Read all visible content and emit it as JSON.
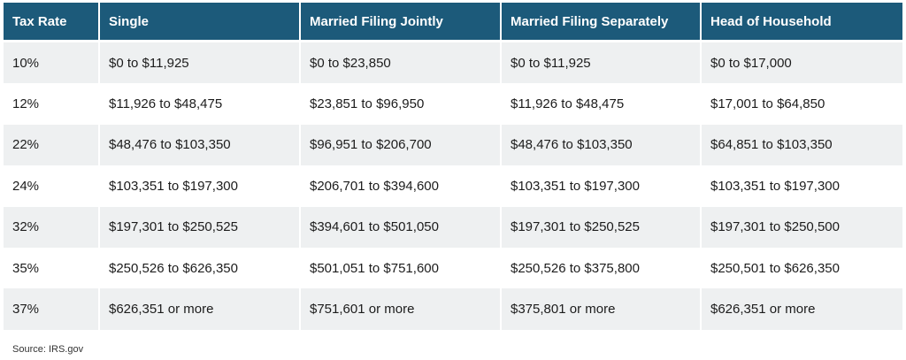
{
  "table": {
    "columns": [
      "Tax Rate",
      "Single",
      "Married Filing Jointly",
      "Married Filing Separately",
      "Head of Household"
    ],
    "rows": [
      [
        "10%",
        "$0 to $11,925",
        "$0 to $23,850",
        "$0 to $11,925",
        "$0 to $17,000"
      ],
      [
        "12%",
        "$11,926 to $48,475",
        "$23,851 to $96,950",
        "$11,926 to $48,475",
        "$17,001 to $64,850"
      ],
      [
        "22%",
        "$48,476 to $103,350",
        "$96,951 to $206,700",
        "$48,476 to $103,350",
        "$64,851 to $103,350"
      ],
      [
        "24%",
        "$103,351 to $197,300",
        "$206,701 to $394,600",
        "$103,351 to $197,300",
        "$103,351 to $197,300"
      ],
      [
        "32%",
        "$197,301 to $250,525",
        "$394,601 to $501,050",
        "$197,301 to $250,525",
        "$197,301 to $250,500"
      ],
      [
        "35%",
        "$250,526 to $626,350",
        "$501,051 to $751,600",
        "$250,526 to $375,800",
        "$250,501 to $626,350"
      ],
      [
        "37%",
        "$626,351 or more",
        "$751,601 or more",
        "$375,801 or more",
        "$626,351 or more"
      ]
    ]
  },
  "source": "Source: IRS.gov"
}
